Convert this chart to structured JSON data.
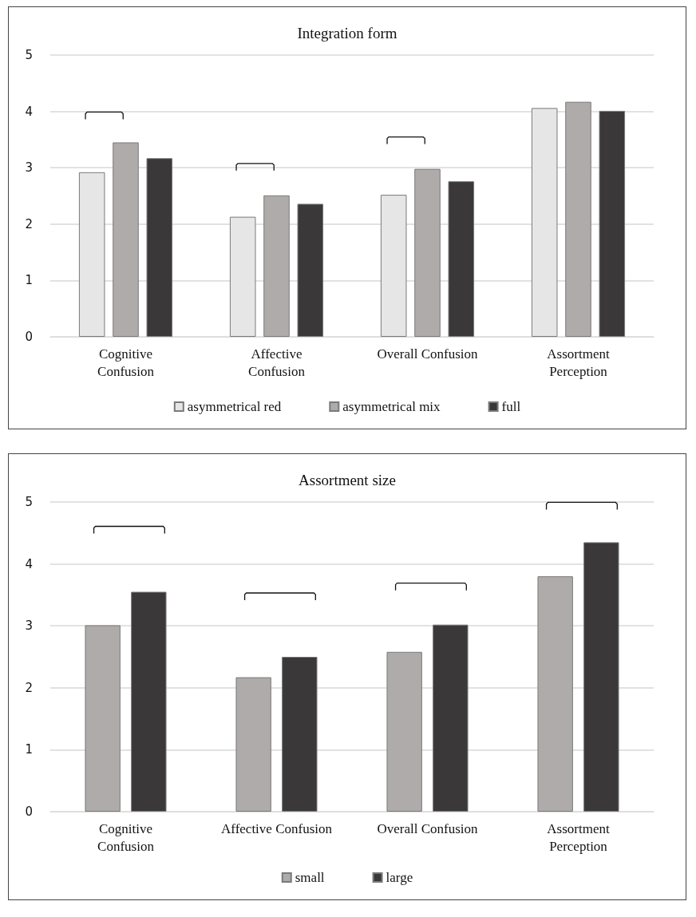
{
  "chart_data": [
    {
      "type": "bar",
      "title": "Integration form",
      "categories": [
        "Cognitive\nConfusion",
        "Affective\nConfusion",
        "Overall Confusion",
        "Assortment\nPerception"
      ],
      "series": [
        {
          "name": "asymmetrical red",
          "color": "#e6e6e6",
          "values": [
            2.92,
            2.13,
            2.52,
            4.06
          ]
        },
        {
          "name": "asymmetrical mix",
          "color": "#afabab",
          "values": [
            3.45,
            2.51,
            2.98,
            4.17
          ]
        },
        {
          "name": "full",
          "color": "#3a3838",
          "values": [
            3.17,
            2.36,
            2.76,
            4.01
          ]
        }
      ],
      "ylim": [
        0,
        5
      ],
      "yticks": [
        0,
        1,
        2,
        3,
        4,
        5
      ],
      "grid": "y",
      "legend": "bottom"
    },
    {
      "type": "bar",
      "title": "Assortment size",
      "categories": [
        "Cognitive\nConfusion",
        "Affective Confusion",
        "Overall Confusion",
        "Assortment\nPerception"
      ],
      "series": [
        {
          "name": "small",
          "color": "#afabab",
          "values": [
            3.01,
            2.17,
            2.58,
            3.8
          ]
        },
        {
          "name": "large",
          "color": "#3a3838",
          "values": [
            3.55,
            2.5,
            3.02,
            4.35
          ]
        }
      ],
      "ylim": [
        0,
        5
      ],
      "yticks": [
        0,
        1,
        2,
        3,
        4,
        5
      ],
      "grid": "y",
      "legend": "bottom"
    }
  ]
}
